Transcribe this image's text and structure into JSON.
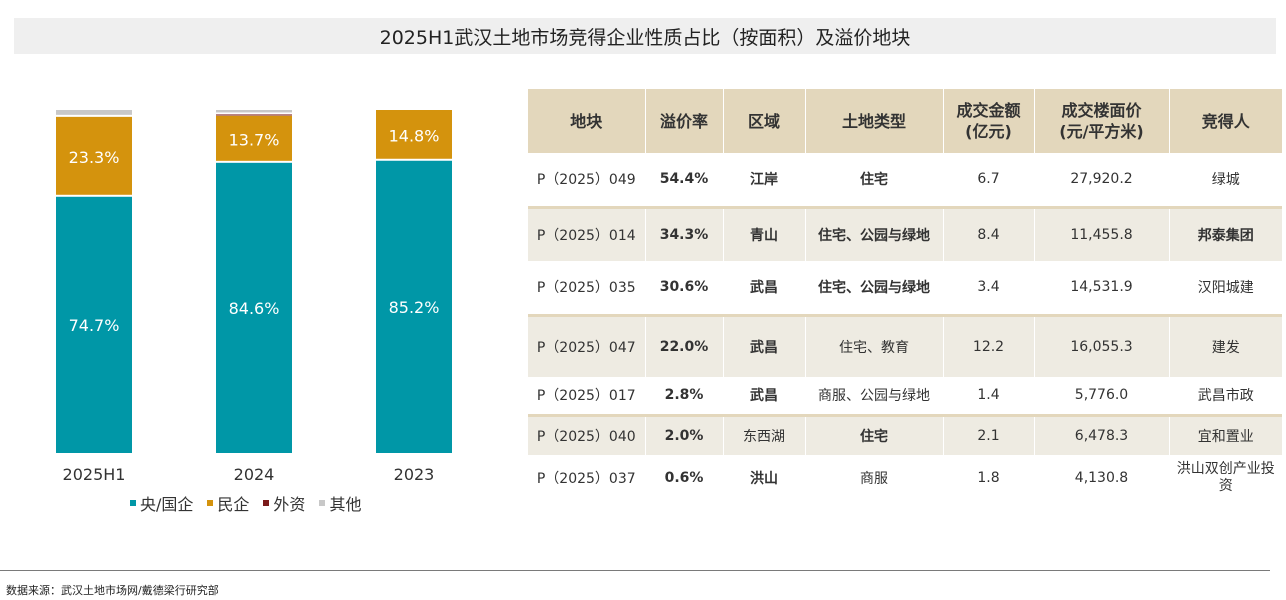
{
  "title": "2025H1武汉土地市场竞得企业性质占比（按面积）及溢价地块",
  "chart_data": {
    "type": "bar",
    "stacked": true,
    "percent": true,
    "categories": [
      "2025H1",
      "2024",
      "2023"
    ],
    "ylim": [
      0,
      100
    ],
    "series": [
      {
        "name": "央/国企",
        "color": "#0097a7",
        "values": [
          74.7,
          84.6,
          85.2
        ],
        "labels": [
          "74.7%",
          "84.6%",
          "85.2%"
        ]
      },
      {
        "name": "民企",
        "color": "#d4930d",
        "values": [
          23.3,
          13.7,
          14.8
        ],
        "labels": [
          "23.3%",
          "13.7%",
          "14.8%"
        ]
      },
      {
        "name": "外资",
        "color": "#7b1a1a",
        "values": [
          0.0,
          0.4,
          0.0
        ],
        "labels": [
          "",
          "",
          ""
        ]
      },
      {
        "name": "其他",
        "color": "#c8c8c8",
        "values": [
          2.0,
          1.3,
          0.0
        ],
        "labels": [
          "",
          "",
          ""
        ]
      }
    ]
  },
  "table": {
    "headers": [
      "地块",
      "溢价率",
      "区域",
      "土地类型",
      "成交金额\n(亿元)",
      "成交楼面价\n(元/平方米)",
      "竞得人"
    ],
    "rows": [
      [
        "P（2025）049",
        "54.4%",
        "江岸",
        "住宅",
        "6.7",
        "27,920.2",
        "绿城"
      ],
      [
        "P（2025）014",
        "34.3%",
        "青山",
        "住宅、公园与绿地",
        "8.4",
        "11,455.8",
        "邦泰集团"
      ],
      [
        "P（2025）035",
        "30.6%",
        "武昌",
        "住宅、公园与绿地",
        "3.4",
        "14,531.9",
        "汉阳城建"
      ],
      [
        "P（2025）047",
        "22.0%",
        "武昌",
        "住宅、教育",
        "12.2",
        "16,055.3",
        "建发"
      ],
      [
        "P（2025）017",
        "2.8%",
        "武昌",
        "商服、公园与绿地",
        "1.4",
        "5,776.0",
        "武昌市政"
      ],
      [
        "P（2025）040",
        "2.0%",
        "东西湖",
        "住宅",
        "2.1",
        "6,478.3",
        "宜和置业"
      ],
      [
        "P（2025）037",
        "0.6%",
        "洪山",
        "商服",
        "1.8",
        "4,130.8",
        "洪山双创产业投资"
      ]
    ]
  },
  "source": "数据来源：武汉土地市场网/戴德梁行研究部"
}
